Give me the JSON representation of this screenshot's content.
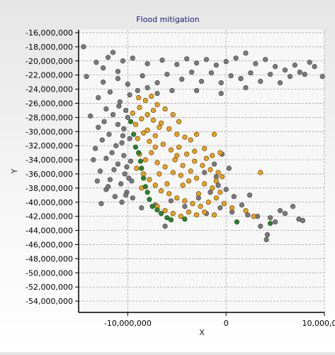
{
  "chart_data": {
    "type": "scatter",
    "title": "Flood mitigation",
    "xlabel": "X",
    "ylabel": "Y",
    "xlim": [
      -15000000,
      10000000
    ],
    "ylim": [
      -55600000,
      -15600000
    ],
    "x_ticks": [
      -10000000,
      0,
      10000000
    ],
    "x_tick_labels": [
      "-10,000,000",
      "0",
      "10,000,000"
    ],
    "y_ticks": [
      -16000000,
      -18000000,
      -20000000,
      -22000000,
      -24000000,
      -26000000,
      -28000000,
      -30000000,
      -32000000,
      -34000000,
      -36000000,
      -38000000,
      -40000000,
      -42000000,
      -44000000,
      -46000000,
      -48000000,
      -50000000,
      -52000000,
      -54000000
    ],
    "y_tick_labels": [
      "-16,000,000",
      "-18,000,000",
      "-20,000,000",
      "-22,000,000",
      "-24,000,000",
      "-26,000,000",
      "-28,000,000",
      "-30,000,000",
      "-32,000,000",
      "-34,000,000",
      "-36,000,000",
      "-38,000,000",
      "-40,000,000",
      "-42,000,000",
      "-44,000,000",
      "-46,000,000",
      "-48,000,000",
      "-50,000,000",
      "-52,000,000",
      "-54,000,000"
    ],
    "grid": true,
    "legend": "none",
    "colors": {
      "gray": "#7a7a7a",
      "orange": "#f5a000",
      "green": "#1e8a1e",
      "title": "#1a1a6e",
      "plot_bg": "#f7f7f7"
    },
    "series": [
      {
        "color": "gray",
        "points": [
          [
            -14500000,
            -18000000
          ],
          [
            -13200000,
            -20200000
          ],
          [
            -12000000,
            -19500000
          ],
          [
            -11500000,
            -18800000
          ],
          [
            -10500000,
            -20000000
          ],
          [
            -9500000,
            -19600000
          ],
          [
            -8000000,
            -20400000
          ],
          [
            -6500000,
            -19900000
          ],
          [
            -5000000,
            -20500000
          ],
          [
            -4000000,
            -19700000
          ],
          [
            -3000000,
            -20300000
          ],
          [
            -2000000,
            -19800000
          ],
          [
            -1000000,
            -20600000
          ],
          [
            0,
            -20100000
          ],
          [
            1000000,
            -19600000
          ],
          [
            2000000,
            -18900000
          ],
          [
            3000000,
            -20400000
          ],
          [
            4000000,
            -19800000
          ],
          [
            5000000,
            -20800000
          ],
          [
            6000000,
            -21300000
          ],
          [
            7000000,
            -20600000
          ],
          [
            8000000,
            -21900000
          ],
          [
            9000000,
            -20800000
          ],
          [
            9800000,
            -22200000
          ],
          [
            -14200000,
            -22200000
          ],
          [
            -12500000,
            -23000000
          ],
          [
            -11000000,
            -22500000
          ],
          [
            -10000000,
            -23300000
          ],
          [
            -8500000,
            -22100000
          ],
          [
            -7000000,
            -23100000
          ],
          [
            -6000000,
            -21900000
          ],
          [
            -4500000,
            -22600000
          ],
          [
            -3500000,
            -21600000
          ],
          [
            -2500000,
            -22900000
          ],
          [
            -1500000,
            -21700000
          ],
          [
            -500000,
            -23100000
          ],
          [
            500000,
            -22100000
          ],
          [
            1500000,
            -22500000
          ],
          [
            2500000,
            -21700000
          ],
          [
            3500000,
            -22900000
          ],
          [
            4500000,
            -21900000
          ],
          [
            5500000,
            -23100000
          ],
          [
            6500000,
            -22200000
          ],
          [
            7500000,
            -21600000
          ],
          [
            8500000,
            -20200000
          ],
          [
            -13000000,
            -25200000
          ],
          [
            -12200000,
            -26800000
          ],
          [
            -11800000,
            -24400000
          ],
          [
            -10800000,
            -25800000
          ],
          [
            -9800000,
            -24800000
          ],
          [
            -9000000,
            -24200000
          ],
          [
            -8000000,
            -23800000
          ],
          [
            -7000000,
            -24600000
          ],
          [
            -5500000,
            -24200000
          ],
          [
            -3000000,
            -24200000
          ],
          [
            -500000,
            -24600000
          ],
          [
            2000000,
            -23800000
          ],
          [
            -13800000,
            -27800000
          ],
          [
            -13000000,
            -29400000
          ],
          [
            -12600000,
            -31200000
          ],
          [
            -13300000,
            -32400000
          ],
          [
            -12200000,
            -33800000
          ],
          [
            -12800000,
            -35600000
          ],
          [
            -11800000,
            -36800000
          ],
          [
            -12200000,
            -38200000
          ],
          [
            -11300000,
            -39200000
          ],
          [
            -10600000,
            -40000000
          ],
          [
            -11500000,
            -27600000
          ],
          [
            -11000000,
            -29000000
          ],
          [
            -10500000,
            -30600000
          ],
          [
            -11200000,
            -32000000
          ],
          [
            -10400000,
            -33400000
          ],
          [
            -11000000,
            -34600000
          ],
          [
            -10300000,
            -36000000
          ],
          [
            -10700000,
            -37400000
          ],
          [
            -10100000,
            -38600000
          ],
          [
            -10000000,
            -28000000
          ],
          [
            -9800000,
            -31000000
          ],
          [
            -9700000,
            -34200000
          ],
          [
            -9600000,
            -37000000
          ],
          [
            -9500000,
            -39400000
          ],
          [
            -12400000,
            -28600000
          ],
          [
            -11900000,
            -30400000
          ],
          [
            -11600000,
            -33000000
          ],
          [
            -11400000,
            -35400000
          ],
          [
            -12000000,
            -37800000
          ],
          [
            -10900000,
            -26400000
          ],
          [
            -10200000,
            -27000000
          ],
          [
            -10400000,
            -29600000
          ],
          [
            -10600000,
            -31600000
          ],
          [
            -10100000,
            -35000000
          ],
          [
            -9900000,
            -36600000
          ],
          [
            -10200000,
            -39000000
          ],
          [
            -13500000,
            -34000000
          ],
          [
            -13100000,
            -37000000
          ],
          [
            -12700000,
            -40200000
          ],
          [
            -8600000,
            -40800000
          ],
          [
            -7200000,
            -40400000
          ],
          [
            -5600000,
            -39800000
          ],
          [
            -4200000,
            -40600000
          ],
          [
            -2800000,
            -39400000
          ],
          [
            -1600000,
            -38600000
          ],
          [
            -800000,
            -37600000
          ],
          [
            0,
            -38200000
          ],
          [
            800000,
            -39200000
          ],
          [
            1600000,
            -40400000
          ],
          [
            2400000,
            -39000000
          ],
          [
            -2000000,
            -41600000
          ],
          [
            -600000,
            -40800000
          ],
          [
            600000,
            -41400000
          ],
          [
            2200000,
            -41800000
          ],
          [
            3200000,
            -42000000
          ],
          [
            4500000,
            -42200000
          ],
          [
            5500000,
            -41200000
          ],
          [
            6800000,
            -40600000
          ],
          [
            7800000,
            -42600000
          ],
          [
            -1200000,
            -34600000
          ],
          [
            -400000,
            -33200000
          ],
          [
            -1000000,
            -36400000
          ],
          [
            300000,
            -35200000
          ],
          [
            -2200000,
            -35800000
          ],
          [
            3500000,
            -43400000
          ],
          [
            4200000,
            -44600000
          ],
          [
            5000000,
            -42800000
          ],
          [
            4100000,
            -45300000
          ],
          [
            6000000,
            -41600000
          ],
          [
            7400000,
            -42400000
          ],
          [
            -6200000,
            -43400000
          ],
          [
            -12500000,
            -21000000
          ],
          [
            -11000000,
            -21500000
          ]
        ]
      },
      {
        "color": "orange",
        "points": [
          [
            -9500000,
            -27400000
          ],
          [
            -8800000,
            -26600000
          ],
          [
            -8200000,
            -25600000
          ],
          [
            -7600000,
            -25000000
          ],
          [
            -7000000,
            -26200000
          ],
          [
            -6200000,
            -26800000
          ],
          [
            -5400000,
            -27600000
          ],
          [
            -4800000,
            -28600000
          ],
          [
            -9200000,
            -29000000
          ],
          [
            -8600000,
            -28200000
          ],
          [
            -8000000,
            -27600000
          ],
          [
            -7400000,
            -28400000
          ],
          [
            -6600000,
            -28800000
          ],
          [
            -5800000,
            -29600000
          ],
          [
            -5000000,
            -30400000
          ],
          [
            -4200000,
            -30800000
          ],
          [
            -3600000,
            -31200000
          ],
          [
            -3000000,
            -30400000
          ],
          [
            -2200000,
            -32400000
          ],
          [
            -1400000,
            -33400000
          ],
          [
            -600000,
            -33000000
          ],
          [
            -9000000,
            -31000000
          ],
          [
            -8400000,
            -30200000
          ],
          [
            -7800000,
            -31400000
          ],
          [
            -7200000,
            -30600000
          ],
          [
            -6400000,
            -31800000
          ],
          [
            -5600000,
            -32600000
          ],
          [
            -4800000,
            -32200000
          ],
          [
            -4000000,
            -33200000
          ],
          [
            -3200000,
            -34200000
          ],
          [
            -2400000,
            -34800000
          ],
          [
            -1600000,
            -35400000
          ],
          [
            -800000,
            -35800000
          ],
          [
            -8800000,
            -33200000
          ],
          [
            -8200000,
            -34000000
          ],
          [
            -7600000,
            -33000000
          ],
          [
            -7000000,
            -34400000
          ],
          [
            -6200000,
            -35000000
          ],
          [
            -5400000,
            -35800000
          ],
          [
            -4600000,
            -36200000
          ],
          [
            -3800000,
            -37000000
          ],
          [
            -3000000,
            -36600000
          ],
          [
            -2200000,
            -37400000
          ],
          [
            -1400000,
            -38000000
          ],
          [
            -600000,
            -38600000
          ],
          [
            -8400000,
            -36000000
          ],
          [
            -7800000,
            -36800000
          ],
          [
            -7200000,
            -37600000
          ],
          [
            -6600000,
            -38400000
          ],
          [
            -5800000,
            -38800000
          ],
          [
            -5000000,
            -39400000
          ],
          [
            -4200000,
            -39800000
          ],
          [
            -3400000,
            -40200000
          ],
          [
            -2600000,
            -40600000
          ],
          [
            -1800000,
            -40000000
          ],
          [
            -1000000,
            -39400000
          ],
          [
            -200000,
            -40200000
          ],
          [
            600000,
            -40800000
          ],
          [
            -7800000,
            -39600000
          ],
          [
            -7000000,
            -40600000
          ],
          [
            -6200000,
            -41200000
          ],
          [
            -5400000,
            -41600000
          ],
          [
            -4600000,
            -42000000
          ],
          [
            -3800000,
            -41400000
          ],
          [
            -3000000,
            -41800000
          ],
          [
            -2200000,
            -41400000
          ],
          [
            -1200000,
            -41800000
          ],
          [
            -8000000,
            -29800000
          ],
          [
            -7200000,
            -32200000
          ],
          [
            -6800000,
            -36000000
          ],
          [
            -6000000,
            -37400000
          ],
          [
            -5200000,
            -34000000
          ],
          [
            -4400000,
            -34800000
          ],
          [
            -3600000,
            -35600000
          ],
          [
            -2800000,
            -38800000
          ],
          [
            -1000000,
            -37000000
          ],
          [
            -400000,
            -36400000
          ],
          [
            3500000,
            -35800000
          ],
          [
            2000000,
            -41200000
          ],
          [
            2800000,
            -42000000
          ],
          [
            -9100000,
            -35200000
          ],
          [
            -8600000,
            -38000000
          ],
          [
            -7400000,
            -27000000
          ],
          [
            -6800000,
            -29400000
          ],
          [
            -5000000,
            -33400000
          ],
          [
            -4400000,
            -37600000
          ],
          [
            -3200000,
            -32800000
          ],
          [
            -2000000,
            -33800000
          ],
          [
            -1200000,
            -30400000
          ],
          [
            -8900000,
            -25200000
          ]
        ]
      },
      {
        "color": "green",
        "points": [
          [
            -9700000,
            -28600000
          ],
          [
            -9400000,
            -30400000
          ],
          [
            -9200000,
            -32200000
          ],
          [
            -8900000,
            -33000000
          ],
          [
            -8700000,
            -34200000
          ],
          [
            -8600000,
            -35200000
          ],
          [
            -8400000,
            -36600000
          ],
          [
            -8200000,
            -37800000
          ],
          [
            -8000000,
            -38600000
          ],
          [
            -7800000,
            -39600000
          ],
          [
            -7500000,
            -40600000
          ],
          [
            -7000000,
            -41100000
          ],
          [
            -6600000,
            -41600000
          ],
          [
            -6000000,
            -42200000
          ],
          [
            -5600000,
            -42500000
          ],
          [
            -4200000,
            -42400000
          ],
          [
            1100000,
            -42800000
          ],
          [
            4500000,
            -43000000
          ]
        ]
      }
    ]
  }
}
